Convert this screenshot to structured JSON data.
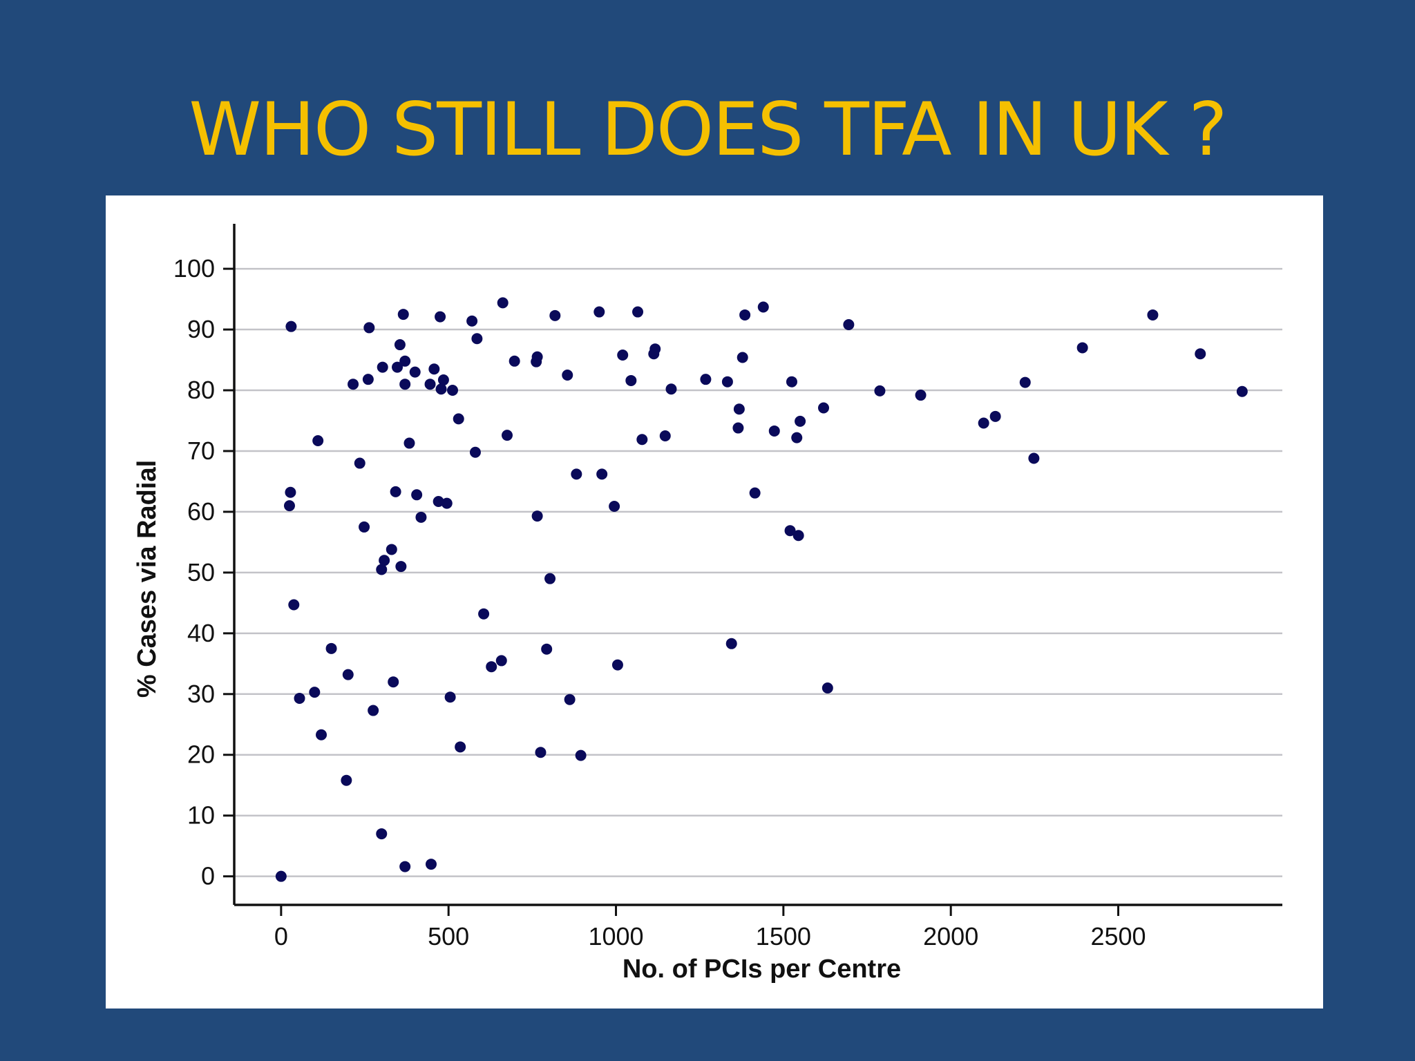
{
  "slide": {
    "title": "WHO STILL DOES TFA IN UK ?"
  },
  "colors": {
    "background": "#21497a",
    "title": "#f5c000",
    "panel": "#ffffff",
    "point": "#0a0a5a",
    "grid": "#c3c3c8",
    "axis": "#111111"
  },
  "chart_data": {
    "type": "scatter",
    "title": "",
    "xlabel": "No. of PCIs per Centre",
    "ylabel": "% Cases via Radial",
    "xlim": [
      -140,
      2990
    ],
    "ylim": [
      -4.7,
      104.9
    ],
    "xticks": [
      0,
      500,
      1000,
      1500,
      2000,
      2500
    ],
    "yticks": [
      0,
      10,
      20,
      30,
      40,
      50,
      60,
      70,
      80,
      90,
      100
    ],
    "grid": "horizontal",
    "series": [
      {
        "points": [
          [
            0,
            0
          ],
          [
            30,
            90.5
          ],
          [
            25,
            61
          ],
          [
            28,
            63.2
          ],
          [
            38,
            44.7
          ],
          [
            55,
            29.3
          ],
          [
            100,
            30.3
          ],
          [
            110,
            71.7
          ],
          [
            120,
            23.3
          ],
          [
            150,
            37.5
          ],
          [
            195,
            15.8
          ],
          [
            200,
            33.2
          ],
          [
            215,
            81
          ],
          [
            235,
            68
          ],
          [
            248,
            57.5
          ],
          [
            260,
            81.8
          ],
          [
            263,
            90.3
          ],
          [
            275,
            27.3
          ],
          [
            300,
            7
          ],
          [
            300,
            50.5
          ],
          [
            303,
            83.8
          ],
          [
            308,
            52
          ],
          [
            330,
            53.8
          ],
          [
            335,
            32
          ],
          [
            342,
            63.3
          ],
          [
            347,
            83.8
          ],
          [
            355,
            87.5
          ],
          [
            358,
            51
          ],
          [
            365,
            92.5
          ],
          [
            370,
            84.8
          ],
          [
            370,
            81
          ],
          [
            370,
            1.6
          ],
          [
            383,
            71.3
          ],
          [
            400,
            83
          ],
          [
            405,
            62.8
          ],
          [
            418,
            59.1
          ],
          [
            445,
            81
          ],
          [
            448,
            2
          ],
          [
            457,
            83.5
          ],
          [
            470,
            61.7
          ],
          [
            475,
            92.1
          ],
          [
            478,
            80.2
          ],
          [
            485,
            81.7
          ],
          [
            495,
            61.4
          ],
          [
            505,
            29.5
          ],
          [
            512,
            80
          ],
          [
            530,
            75.3
          ],
          [
            535,
            21.3
          ],
          [
            570,
            91.4
          ],
          [
            580,
            69.8
          ],
          [
            585,
            88.5
          ],
          [
            605,
            43.2
          ],
          [
            628,
            34.5
          ],
          [
            658,
            35.5
          ],
          [
            662,
            94.4
          ],
          [
            675,
            72.6
          ],
          [
            697,
            84.8
          ],
          [
            762,
            84.7
          ],
          [
            765,
            85.5
          ],
          [
            765,
            59.3
          ],
          [
            775,
            20.4
          ],
          [
            793,
            37.4
          ],
          [
            803,
            49
          ],
          [
            818,
            92.3
          ],
          [
            855,
            82.5
          ],
          [
            862,
            29.1
          ],
          [
            882,
            66.2
          ],
          [
            895,
            19.9
          ],
          [
            950,
            92.9
          ],
          [
            958,
            66.2
          ],
          [
            995,
            60.9
          ],
          [
            1005,
            34.8
          ],
          [
            1020,
            85.8
          ],
          [
            1045,
            81.6
          ],
          [
            1065,
            92.9
          ],
          [
            1078,
            71.9
          ],
          [
            1113,
            86
          ],
          [
            1117,
            86.8
          ],
          [
            1147,
            72.5
          ],
          [
            1165,
            80.2
          ],
          [
            1268,
            81.8
          ],
          [
            1333,
            81.4
          ],
          [
            1345,
            38.3
          ],
          [
            1365,
            73.8
          ],
          [
            1368,
            76.9
          ],
          [
            1378,
            85.4
          ],
          [
            1385,
            92.4
          ],
          [
            1415,
            63.1
          ],
          [
            1440,
            93.7
          ],
          [
            1473,
            73.3
          ],
          [
            1520,
            56.9
          ],
          [
            1525,
            81.4
          ],
          [
            1540,
            72.2
          ],
          [
            1545,
            56.1
          ],
          [
            1550,
            74.9
          ],
          [
            1620,
            77.1
          ],
          [
            1632,
            31
          ],
          [
            1695,
            90.8
          ],
          [
            1788,
            79.9
          ],
          [
            1910,
            79.2
          ],
          [
            2098,
            74.6
          ],
          [
            2133,
            75.7
          ],
          [
            2222,
            81.3
          ],
          [
            2248,
            68.8
          ],
          [
            2393,
            87
          ],
          [
            2603,
            92.4
          ],
          [
            2745,
            86
          ],
          [
            2870,
            79.8
          ]
        ]
      }
    ]
  }
}
